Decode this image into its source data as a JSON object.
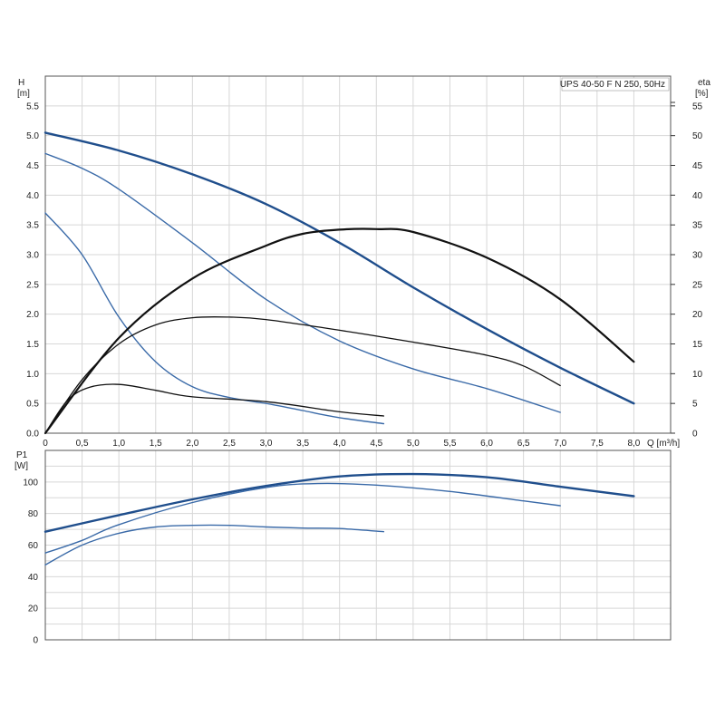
{
  "chart_data": [
    {
      "type": "line",
      "title": "UPS 40-50 F N 250, 50Hz",
      "ylabel_left": "H",
      "ylabel_left_unit": "[m]",
      "ylabel_right": "eta",
      "ylabel_right_unit": "[%]",
      "xlabel": "Q [m³/h]",
      "xlim": [
        0,
        8.5
      ],
      "ylim_left": [
        0,
        6.0
      ],
      "ylim_right": [
        0,
        60
      ],
      "x_ticks": [
        "0",
        "0,5",
        "1,0",
        "1,5",
        "2,0",
        "2,5",
        "3,0",
        "3,5",
        "4,0",
        "4,5",
        "5,0",
        "5,5",
        "6,0",
        "6,5",
        "7,0",
        "7,5",
        "8,0"
      ],
      "y_left_ticks": [
        "0.0",
        "0.5",
        "1.0",
        "1.5",
        "2.0",
        "2.5",
        "3.0",
        "3.5",
        "4.0",
        "4.5",
        "5.0",
        "5.5"
      ],
      "y_right_ticks": [
        "0",
        "5",
        "10",
        "15",
        "20",
        "25",
        "30",
        "35",
        "40",
        "45",
        "50",
        "55"
      ],
      "grid": true,
      "series": [
        {
          "axis": "left",
          "color": "#1f4e8c",
          "width": 2.4,
          "x": [
            0,
            1,
            2,
            3,
            4,
            5,
            6,
            7,
            8
          ],
          "y": [
            5.05,
            4.75,
            4.35,
            3.85,
            3.2,
            2.45,
            1.75,
            1.1,
            0.5
          ]
        },
        {
          "axis": "left",
          "color": "#3a6aa8",
          "width": 1.4,
          "x": [
            0,
            0.5,
            1,
            2,
            3,
            4,
            5,
            6,
            7
          ],
          "y": [
            4.7,
            4.45,
            4.1,
            3.2,
            2.25,
            1.55,
            1.08,
            0.75,
            0.35
          ]
        },
        {
          "axis": "left",
          "color": "#3a6aa8",
          "width": 1.4,
          "x": [
            0,
            0.5,
            1,
            1.5,
            2,
            2.5,
            3,
            3.5,
            4,
            4.6
          ],
          "y": [
            3.7,
            3.0,
            1.95,
            1.2,
            0.78,
            0.6,
            0.5,
            0.38,
            0.26,
            0.16
          ]
        },
        {
          "axis": "right",
          "color": "#111111",
          "width": 2.2,
          "x": [
            0,
            1,
            2,
            3,
            3.5,
            4,
            4.5,
            5,
            6,
            7,
            8
          ],
          "y": [
            0,
            16,
            26,
            31.5,
            33.5,
            34.2,
            34.3,
            33.8,
            29.5,
            22.5,
            12
          ]
        },
        {
          "axis": "right",
          "color": "#111111",
          "width": 1.3,
          "x": [
            0,
            0.5,
            1,
            1.5,
            2,
            2.5,
            3,
            4,
            5,
            6,
            6.5,
            7
          ],
          "y": [
            0,
            9,
            15,
            18.2,
            19.4,
            19.5,
            19.1,
            17.3,
            15.3,
            13.1,
            11.3,
            8
          ]
        },
        {
          "axis": "right",
          "color": "#111111",
          "width": 1.3,
          "x": [
            0,
            0.3,
            0.6,
            1,
            1.5,
            2,
            3,
            4,
            4.6
          ],
          "y": [
            0,
            5.5,
            7.7,
            8.2,
            7.2,
            6.1,
            5.3,
            3.6,
            2.9
          ]
        }
      ]
    },
    {
      "type": "line",
      "ylabel": "P1",
      "ylabel_unit": "[W]",
      "xlim": [
        0,
        8.5
      ],
      "ylim": [
        0,
        120
      ],
      "y_ticks": [
        "0",
        "20",
        "40",
        "60",
        "80",
        "100"
      ],
      "grid": true,
      "series": [
        {
          "color": "#1f4e8c",
          "width": 2.4,
          "x": [
            0,
            1,
            2,
            3,
            4,
            5,
            6,
            7,
            8
          ],
          "y": [
            68.5,
            79,
            89,
            97.5,
            103.5,
            105,
            103,
            97,
            91
          ]
        },
        {
          "color": "#3a6aa8",
          "width": 1.4,
          "x": [
            0,
            0.5,
            1,
            2,
            3,
            3.7,
            4.5,
            5.5,
            6.5,
            7
          ],
          "y": [
            55,
            63,
            73,
            87,
            96.5,
            99,
            98,
            94,
            88,
            85
          ]
        },
        {
          "color": "#3a6aa8",
          "width": 1.4,
          "x": [
            0,
            0.5,
            1,
            1.5,
            2,
            2.5,
            3,
            3.5,
            4,
            4.6
          ],
          "y": [
            47.5,
            60,
            67.5,
            71.5,
            72.5,
            72.5,
            71.5,
            70.8,
            70.5,
            68.5
          ]
        }
      ]
    }
  ]
}
